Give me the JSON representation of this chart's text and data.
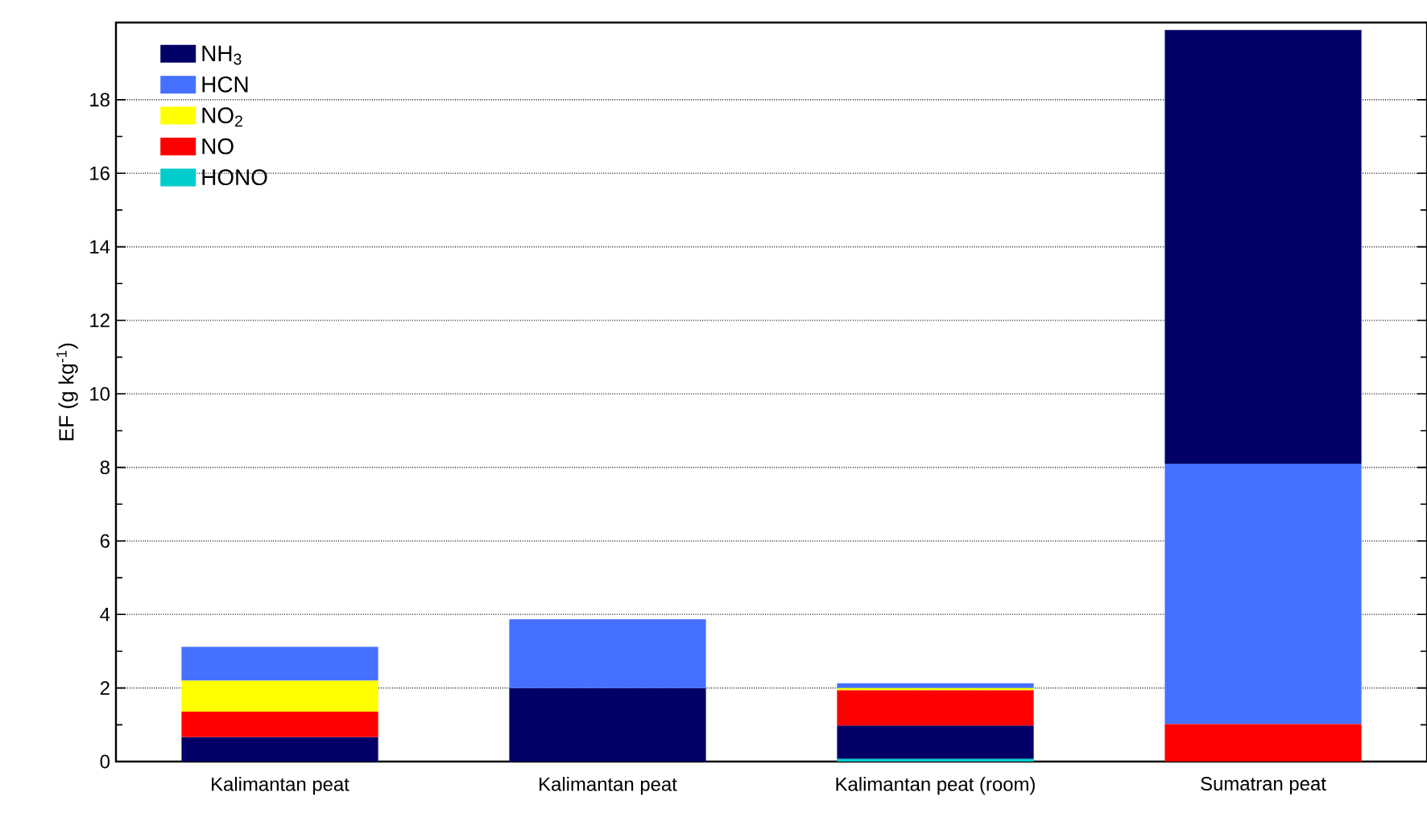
{
  "chart_data": {
    "type": "bar",
    "ylabel": "EF (g kg$^{-1}$)",
    "categories": [
      "Kalimantan peat",
      "Kalimantan peat",
      "Kalimantan peat (room)",
      "Sumatran peat"
    ],
    "series": [
      {
        "name": "NH$_{3}$",
        "color": "#000066",
        "values": [
          0.67,
          2.0,
          0.91,
          11.8
        ],
        "base": [
          0,
          0,
          0.07,
          8.1
        ]
      },
      {
        "name": "HCN",
        "color": "#4670ff",
        "values": [
          0.92,
          1.87,
          0.13,
          7.08
        ],
        "base": [
          2.2,
          2.0,
          2.0,
          1.02
        ]
      },
      {
        "name": "NO$_{2}$",
        "color": "#ffff00",
        "values": [
          0.84,
          null,
          0.06,
          null
        ],
        "base": [
          1.36,
          null,
          1.94,
          null
        ]
      },
      {
        "name": "NO",
        "color": "#ff0000",
        "values": [
          0.69,
          null,
          0.96,
          1.02
        ],
        "base": [
          0.67,
          null,
          0.98,
          0
        ]
      },
      {
        "name": "HONO",
        "color": "#00cccc",
        "values": [
          null,
          null,
          0.07,
          null
        ],
        "base": [
          null,
          null,
          0,
          null
        ]
      }
    ],
    "ylim": [
      0,
      20.1
    ],
    "yticks": [
      0,
      2,
      4,
      6,
      8,
      10,
      12,
      14,
      16,
      18
    ],
    "grid": "y",
    "legend": "top left"
  }
}
